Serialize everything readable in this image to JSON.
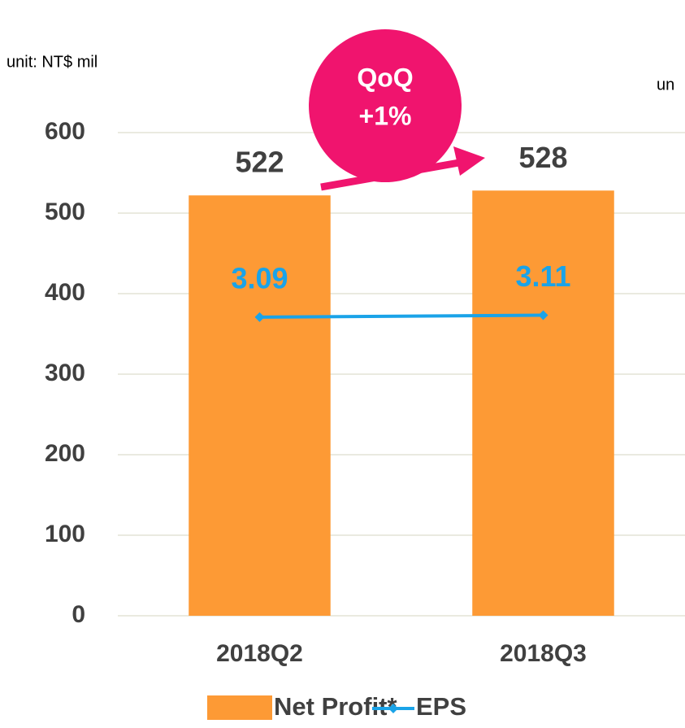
{
  "chart_data": {
    "type": "bar",
    "unit_label": "unit: NT$ mil",
    "cut_text": "un",
    "annotation": [
      "QoQ",
      "+1%"
    ],
    "categories": [
      "2018Q2",
      "2018Q3"
    ],
    "series": [
      {
        "name": "Net Profit*",
        "type": "bar",
        "color": "#fd9a35",
        "values": [
          522,
          528
        ]
      },
      {
        "name": "EPS",
        "type": "line",
        "axis": "y2",
        "color": "#1aa3e8",
        "values": [
          3.09,
          3.11
        ]
      }
    ],
    "ylim": [
      0,
      600
    ],
    "yticks": [
      0,
      100,
      200,
      300,
      400,
      500,
      600
    ],
    "y2lim": [
      0,
      5
    ],
    "grid": true
  }
}
